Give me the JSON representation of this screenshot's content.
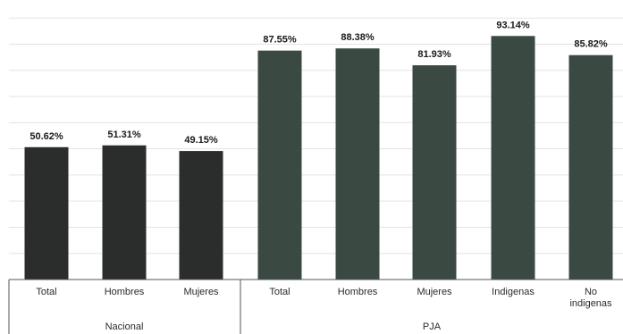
{
  "chart_data": {
    "type": "bar",
    "title": "",
    "xlabel": "",
    "ylabel": "",
    "ylim": [
      0,
      100
    ],
    "grid": true,
    "categories": [
      "Total",
      "Hombres",
      "Mujeres",
      "Total",
      "Hombres",
      "Mujeres",
      "Indígenas",
      "No indígenas"
    ],
    "values": [
      50.62,
      51.31,
      49.15,
      87.55,
      88.38,
      81.93,
      93.14,
      85.82
    ],
    "value_labels": [
      "50.62%",
      "51.31%",
      "49.15%",
      "87.55%",
      "88.38%",
      "81.93%",
      "93.14%",
      "85.82%"
    ],
    "category_lines": [
      [
        "Total"
      ],
      [
        "Hombres"
      ],
      [
        "Mujeres"
      ],
      [
        "Total"
      ],
      [
        "Hombres"
      ],
      [
        "Mujeres"
      ],
      [
        "Indigenas"
      ],
      [
        "No",
        "indigenas"
      ]
    ],
    "groups": [
      {
        "label": "Nacional",
        "start": 0,
        "count": 3
      },
      {
        "label": "PJA",
        "start": 3,
        "count": 5
      }
    ],
    "colors": {
      "nacional_bar": "#2b2d2c",
      "pja_bar": "#3a4a43",
      "grid": "#e3e3e3",
      "axis": "#555555"
    }
  }
}
